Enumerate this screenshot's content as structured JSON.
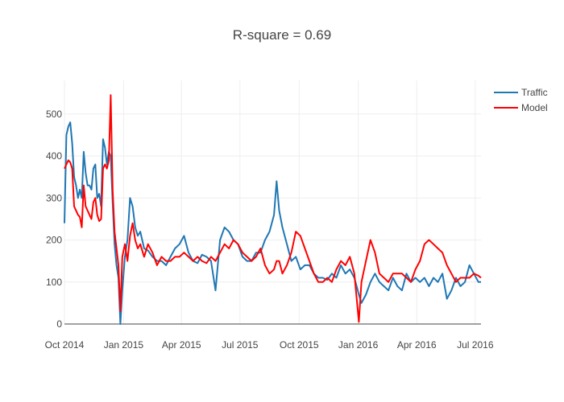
{
  "chart_data": {
    "type": "line",
    "title": "R-square = 0.69",
    "xlabel": "",
    "ylabel": "",
    "x_range": [
      "2014-10-01",
      "2016-07-10"
    ],
    "ylim": [
      0,
      580
    ],
    "x_tick_labels": [
      {
        "date": "2014-10-01",
        "label": "Oct 2014"
      },
      {
        "date": "2015-01-01",
        "label": "Jan 2015"
      },
      {
        "date": "2015-04-01",
        "label": "Apr 2015"
      },
      {
        "date": "2015-07-01",
        "label": "Jul 2015"
      },
      {
        "date": "2015-10-01",
        "label": "Oct 2015"
      },
      {
        "date": "2016-01-01",
        "label": "Jan 2016"
      },
      {
        "date": "2016-04-01",
        "label": "Apr 2016"
      },
      {
        "date": "2016-07-01",
        "label": "Jul 2016"
      }
    ],
    "y_tick_labels": [
      {
        "value": 0,
        "label": "0"
      },
      {
        "value": 100,
        "label": "100"
      },
      {
        "value": 200,
        "label": "200"
      },
      {
        "value": 300,
        "label": "300"
      },
      {
        "value": 400,
        "label": "400"
      },
      {
        "value": 500,
        "label": "500"
      }
    ],
    "grid": true,
    "legend_position": "top-right",
    "series": [
      {
        "name": "Traffic",
        "color": "#1f77b4",
        "points": [
          [
            "2014-10-01",
            240
          ],
          [
            "2014-10-04",
            450
          ],
          [
            "2014-10-07",
            470
          ],
          [
            "2014-10-10",
            480
          ],
          [
            "2014-10-13",
            430
          ],
          [
            "2014-10-16",
            350
          ],
          [
            "2014-10-19",
            330
          ],
          [
            "2014-10-22",
            300
          ],
          [
            "2014-10-25",
            320
          ],
          [
            "2014-10-28",
            300
          ],
          [
            "2014-10-31",
            410
          ],
          [
            "2014-11-03",
            360
          ],
          [
            "2014-11-06",
            330
          ],
          [
            "2014-11-09",
            330
          ],
          [
            "2014-11-12",
            320
          ],
          [
            "2014-11-15",
            370
          ],
          [
            "2014-11-18",
            380
          ],
          [
            "2014-11-21",
            300
          ],
          [
            "2014-11-24",
            310
          ],
          [
            "2014-11-27",
            280
          ],
          [
            "2014-11-30",
            440
          ],
          [
            "2014-12-03",
            420
          ],
          [
            "2014-12-06",
            380
          ],
          [
            "2014-12-09",
            410
          ],
          [
            "2014-12-12",
            400
          ],
          [
            "2014-12-15",
            290
          ],
          [
            "2014-12-18",
            190
          ],
          [
            "2014-12-21",
            140
          ],
          [
            "2014-12-24",
            110
          ],
          [
            "2014-12-27",
            0
          ],
          [
            "2014-12-30",
            80
          ],
          [
            "2015-01-03",
            160
          ],
          [
            "2015-01-07",
            200
          ],
          [
            "2015-01-11",
            300
          ],
          [
            "2015-01-15",
            280
          ],
          [
            "2015-01-19",
            230
          ],
          [
            "2015-01-23",
            210
          ],
          [
            "2015-01-27",
            220
          ],
          [
            "2015-02-02",
            180
          ],
          [
            "2015-02-08",
            175
          ],
          [
            "2015-02-15",
            160
          ],
          [
            "2015-02-22",
            150
          ],
          [
            "2015-03-01",
            150
          ],
          [
            "2015-03-08",
            140
          ],
          [
            "2015-03-15",
            160
          ],
          [
            "2015-03-22",
            180
          ],
          [
            "2015-03-29",
            190
          ],
          [
            "2015-04-05",
            210
          ],
          [
            "2015-04-12",
            170
          ],
          [
            "2015-04-19",
            150
          ],
          [
            "2015-04-26",
            145
          ],
          [
            "2015-05-03",
            165
          ],
          [
            "2015-05-10",
            160
          ],
          [
            "2015-05-17",
            150
          ],
          [
            "2015-05-24",
            80
          ],
          [
            "2015-05-31",
            200
          ],
          [
            "2015-06-07",
            230
          ],
          [
            "2015-06-14",
            220
          ],
          [
            "2015-06-21",
            200
          ],
          [
            "2015-06-28",
            190
          ],
          [
            "2015-07-05",
            160
          ],
          [
            "2015-07-12",
            150
          ],
          [
            "2015-07-19",
            150
          ],
          [
            "2015-07-26",
            170
          ],
          [
            "2015-08-02",
            170
          ],
          [
            "2015-08-09",
            200
          ],
          [
            "2015-08-16",
            220
          ],
          [
            "2015-08-23",
            260
          ],
          [
            "2015-08-27",
            340
          ],
          [
            "2015-08-31",
            270
          ],
          [
            "2015-09-05",
            230
          ],
          [
            "2015-09-12",
            190
          ],
          [
            "2015-09-19",
            150
          ],
          [
            "2015-09-26",
            160
          ],
          [
            "2015-10-03",
            130
          ],
          [
            "2015-10-10",
            140
          ],
          [
            "2015-10-17",
            140
          ],
          [
            "2015-10-24",
            120
          ],
          [
            "2015-10-31",
            110
          ],
          [
            "2015-11-07",
            110
          ],
          [
            "2015-11-14",
            105
          ],
          [
            "2015-11-21",
            120
          ],
          [
            "2015-11-28",
            110
          ],
          [
            "2015-12-05",
            140
          ],
          [
            "2015-12-12",
            120
          ],
          [
            "2015-12-19",
            130
          ],
          [
            "2015-12-26",
            110
          ],
          [
            "2016-01-02",
            70
          ],
          [
            "2016-01-06",
            50
          ],
          [
            "2016-01-13",
            70
          ],
          [
            "2016-01-20",
            100
          ],
          [
            "2016-01-27",
            120
          ],
          [
            "2016-02-03",
            100
          ],
          [
            "2016-02-10",
            90
          ],
          [
            "2016-02-17",
            80
          ],
          [
            "2016-02-24",
            110
          ],
          [
            "2016-03-02",
            90
          ],
          [
            "2016-03-09",
            80
          ],
          [
            "2016-03-16",
            120
          ],
          [
            "2016-03-23",
            100
          ],
          [
            "2016-03-30",
            110
          ],
          [
            "2016-04-06",
            100
          ],
          [
            "2016-04-13",
            110
          ],
          [
            "2016-04-20",
            90
          ],
          [
            "2016-04-27",
            110
          ],
          [
            "2016-05-04",
            100
          ],
          [
            "2016-05-11",
            120
          ],
          [
            "2016-05-18",
            60
          ],
          [
            "2016-05-25",
            80
          ],
          [
            "2016-06-01",
            110
          ],
          [
            "2016-06-08",
            90
          ],
          [
            "2016-06-15",
            100
          ],
          [
            "2016-06-22",
            140
          ],
          [
            "2016-06-29",
            120
          ],
          [
            "2016-07-06",
            100
          ],
          [
            "2016-07-10",
            100
          ]
        ]
      },
      {
        "name": "Model",
        "color": "#ff0000",
        "points": [
          [
            "2014-10-01",
            370
          ],
          [
            "2014-10-04",
            380
          ],
          [
            "2014-10-07",
            390
          ],
          [
            "2014-10-10",
            385
          ],
          [
            "2014-10-13",
            370
          ],
          [
            "2014-10-16",
            280
          ],
          [
            "2014-10-19",
            270
          ],
          [
            "2014-10-22",
            260
          ],
          [
            "2014-10-25",
            255
          ],
          [
            "2014-10-28",
            230
          ],
          [
            "2014-10-31",
            330
          ],
          [
            "2014-11-03",
            280
          ],
          [
            "2014-11-06",
            270
          ],
          [
            "2014-11-09",
            260
          ],
          [
            "2014-11-12",
            250
          ],
          [
            "2014-11-15",
            290
          ],
          [
            "2014-11-18",
            300
          ],
          [
            "2014-11-21",
            260
          ],
          [
            "2014-11-24",
            245
          ],
          [
            "2014-11-27",
            250
          ],
          [
            "2014-11-30",
            370
          ],
          [
            "2014-12-03",
            380
          ],
          [
            "2014-12-06",
            370
          ],
          [
            "2014-12-09",
            390
          ],
          [
            "2014-12-12",
            545
          ],
          [
            "2014-12-15",
            320
          ],
          [
            "2014-12-18",
            220
          ],
          [
            "2014-12-21",
            180
          ],
          [
            "2014-12-24",
            140
          ],
          [
            "2014-12-27",
            30
          ],
          [
            "2014-12-30",
            160
          ],
          [
            "2015-01-03",
            190
          ],
          [
            "2015-01-07",
            150
          ],
          [
            "2015-01-11",
            210
          ],
          [
            "2015-01-15",
            240
          ],
          [
            "2015-01-19",
            200
          ],
          [
            "2015-01-23",
            180
          ],
          [
            "2015-01-27",
            190
          ],
          [
            "2015-02-02",
            160
          ],
          [
            "2015-02-08",
            190
          ],
          [
            "2015-02-15",
            170
          ],
          [
            "2015-02-22",
            140
          ],
          [
            "2015-03-01",
            160
          ],
          [
            "2015-03-08",
            150
          ],
          [
            "2015-03-15",
            150
          ],
          [
            "2015-03-22",
            160
          ],
          [
            "2015-03-29",
            160
          ],
          [
            "2015-04-05",
            170
          ],
          [
            "2015-04-12",
            160
          ],
          [
            "2015-04-19",
            150
          ],
          [
            "2015-04-26",
            160
          ],
          [
            "2015-05-03",
            150
          ],
          [
            "2015-05-10",
            145
          ],
          [
            "2015-05-17",
            160
          ],
          [
            "2015-05-24",
            150
          ],
          [
            "2015-05-31",
            170
          ],
          [
            "2015-06-07",
            190
          ],
          [
            "2015-06-14",
            180
          ],
          [
            "2015-06-21",
            200
          ],
          [
            "2015-06-28",
            190
          ],
          [
            "2015-07-05",
            170
          ],
          [
            "2015-07-12",
            160
          ],
          [
            "2015-07-19",
            150
          ],
          [
            "2015-07-26",
            160
          ],
          [
            "2015-08-02",
            180
          ],
          [
            "2015-08-09",
            140
          ],
          [
            "2015-08-16",
            120
          ],
          [
            "2015-08-23",
            130
          ],
          [
            "2015-08-27",
            150
          ],
          [
            "2015-08-31",
            150
          ],
          [
            "2015-09-05",
            120
          ],
          [
            "2015-09-12",
            140
          ],
          [
            "2015-09-19",
            170
          ],
          [
            "2015-09-26",
            220
          ],
          [
            "2015-10-03",
            210
          ],
          [
            "2015-10-10",
            180
          ],
          [
            "2015-10-17",
            150
          ],
          [
            "2015-10-24",
            120
          ],
          [
            "2015-10-31",
            100
          ],
          [
            "2015-11-07",
            100
          ],
          [
            "2015-11-14",
            110
          ],
          [
            "2015-11-21",
            100
          ],
          [
            "2015-11-28",
            130
          ],
          [
            "2015-12-05",
            150
          ],
          [
            "2015-12-12",
            140
          ],
          [
            "2015-12-19",
            160
          ],
          [
            "2015-12-26",
            120
          ],
          [
            "2016-01-02",
            5
          ],
          [
            "2016-01-06",
            100
          ],
          [
            "2016-01-13",
            150
          ],
          [
            "2016-01-20",
            200
          ],
          [
            "2016-01-27",
            170
          ],
          [
            "2016-02-03",
            120
          ],
          [
            "2016-02-10",
            110
          ],
          [
            "2016-02-17",
            100
          ],
          [
            "2016-02-24",
            120
          ],
          [
            "2016-03-02",
            120
          ],
          [
            "2016-03-09",
            120
          ],
          [
            "2016-03-16",
            110
          ],
          [
            "2016-03-23",
            100
          ],
          [
            "2016-03-30",
            130
          ],
          [
            "2016-04-06",
            150
          ],
          [
            "2016-04-13",
            190
          ],
          [
            "2016-04-20",
            200
          ],
          [
            "2016-04-27",
            190
          ],
          [
            "2016-05-04",
            180
          ],
          [
            "2016-05-11",
            170
          ],
          [
            "2016-05-18",
            140
          ],
          [
            "2016-05-25",
            120
          ],
          [
            "2016-06-01",
            100
          ],
          [
            "2016-06-08",
            110
          ],
          [
            "2016-06-15",
            110
          ],
          [
            "2016-06-22",
            110
          ],
          [
            "2016-06-29",
            120
          ],
          [
            "2016-07-06",
            115
          ],
          [
            "2016-07-10",
            110
          ]
        ]
      }
    ]
  }
}
